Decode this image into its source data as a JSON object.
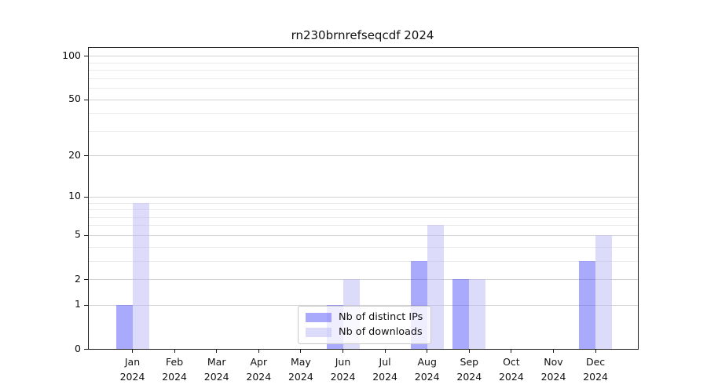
{
  "chart_data": {
    "type": "bar",
    "title": "rn230brnrefseqcdf 2024",
    "categories": [
      "Jan",
      "Feb",
      "Mar",
      "Apr",
      "May",
      "Jun",
      "Jul",
      "Aug",
      "Sep",
      "Oct",
      "Nov",
      "Dec"
    ],
    "x_tick_year": "2024",
    "series": [
      {
        "name": "Nb of distinct IPs",
        "color": "#5555fa",
        "alpha": 0.5,
        "values": [
          1,
          0,
          0,
          0,
          0,
          1,
          0,
          3,
          2,
          0,
          0,
          3
        ]
      },
      {
        "name": "Nb of downloads",
        "color": "#b9b9f5",
        "alpha": 0.5,
        "values": [
          9,
          0,
          0,
          0,
          0,
          2,
          0,
          6,
          2,
          0,
          0,
          5
        ]
      }
    ],
    "yscale": "log1p",
    "ylim": [
      0,
      113
    ],
    "y_ticks": [
      0,
      1,
      2,
      5,
      10,
      20,
      50,
      100
    ],
    "y_minor_ticks": [
      3,
      4,
      6,
      7,
      8,
      9,
      30,
      40,
      60,
      70,
      80,
      90
    ],
    "grid": true,
    "legend_position": "lower center",
    "colors": {
      "major_grid": "#d2d2d2",
      "minor_grid": "#ebebeb",
      "spine": "#1a1a1a"
    }
  }
}
